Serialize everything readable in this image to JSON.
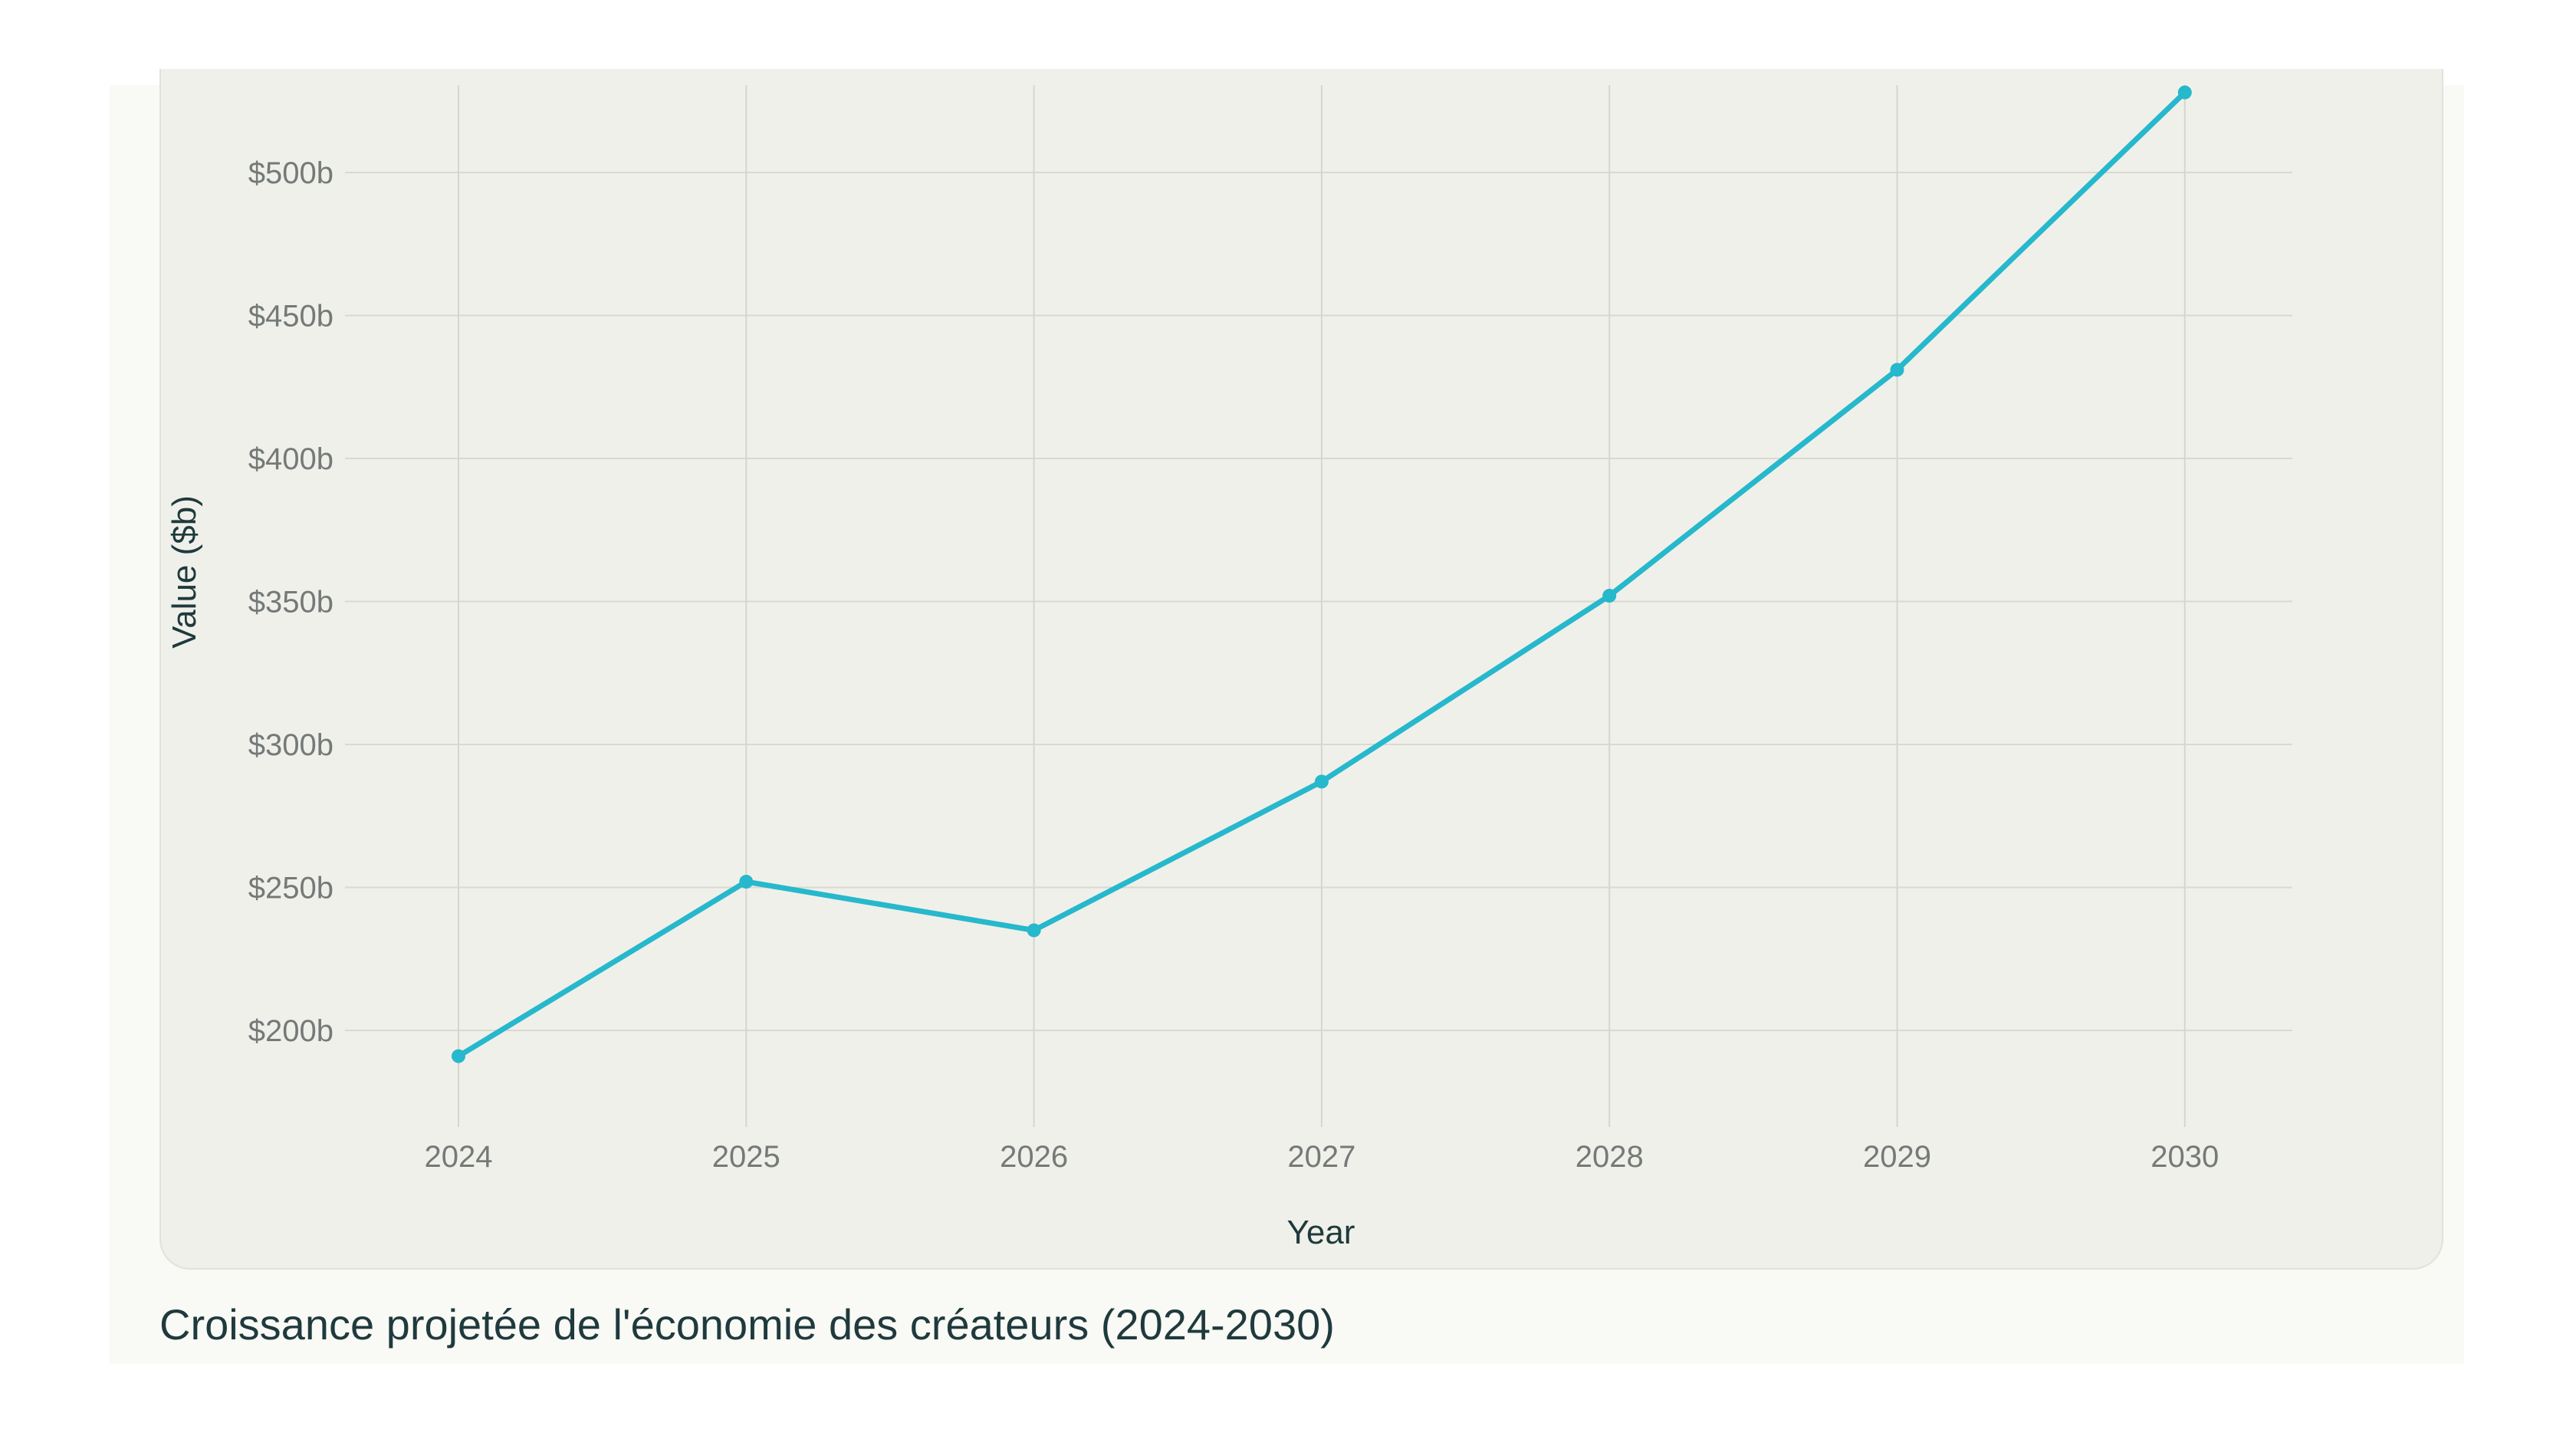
{
  "chart_data": {
    "type": "line",
    "title": "",
    "xlabel": "Year",
    "ylabel": "Value ($b)",
    "x": [
      2024,
      2025,
      2026,
      2027,
      2028,
      2029,
      2030
    ],
    "x_tick_labels": [
      "2024",
      "2025",
      "2026",
      "2027",
      "2028",
      "2029",
      "2030"
    ],
    "y_ticks": [
      200,
      250,
      300,
      350,
      400,
      450,
      500
    ],
    "y_tick_labels": [
      "$200b",
      "$250b",
      "$300b",
      "$350b",
      "$400b",
      "$450b",
      "$500b"
    ],
    "series": [
      {
        "name": "Value",
        "values": [
          191,
          252,
          235,
          287,
          352,
          431,
          528
        ],
        "color": "#26b8cc"
      }
    ],
    "ylim": [
      160,
      530
    ],
    "grid": true,
    "legend": "none"
  },
  "caption": "Croissance projetée de l'économie des créateurs (2024-2030)"
}
